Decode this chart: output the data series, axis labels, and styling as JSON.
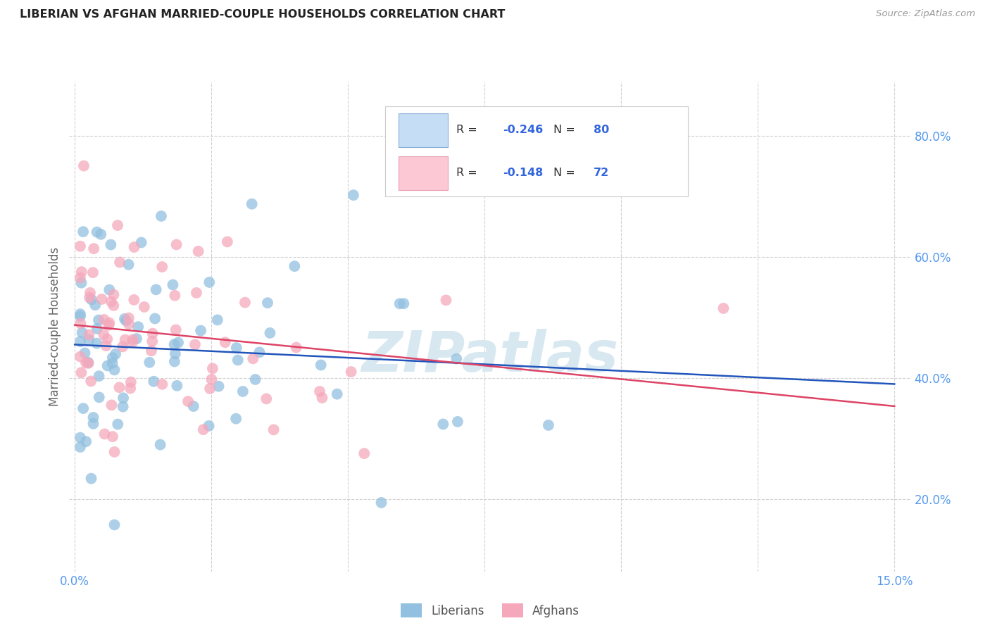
{
  "title": "LIBERIAN VS AFGHAN MARRIED-COUPLE HOUSEHOLDS CORRELATION CHART",
  "source": "Source: ZipAtlas.com",
  "ylabel": "Married-couple Households",
  "xlim": [
    -0.001,
    0.153
  ],
  "ylim": [
    0.08,
    0.89
  ],
  "yticks": [
    0.2,
    0.4,
    0.6,
    0.8
  ],
  "ytick_labels": [
    "20.0%",
    "40.0%",
    "60.0%",
    "80.0%"
  ],
  "xticks": [
    0.0,
    0.15
  ],
  "xtick_labels": [
    "0.0%",
    "15.0%"
  ],
  "liberian_R": -0.246,
  "liberian_N": 80,
  "afghan_R": -0.148,
  "afghan_N": 72,
  "liberian_color": "#92c0e0",
  "afghan_color": "#f5a8bc",
  "liberian_line_color": "#2255bb",
  "afghan_line_color": "#dd4466",
  "legend_liberian_fill": "#c5ddf5",
  "legend_afghan_fill": "#fbc8d4",
  "legend_liberian_edge": "#8ab0d8",
  "legend_afghan_edge": "#e8a0b0",
  "background_color": "#ffffff",
  "watermark_text": "ZIPatlas",
  "watermark_color": "#d8e8f0",
  "grid_color": "#cccccc",
  "tick_color": "#5599ee",
  "ylabel_color": "#666666",
  "title_color": "#222222",
  "source_color": "#999999",
  "legend_text_color": "#333333",
  "legend_value_color": "#3366dd"
}
